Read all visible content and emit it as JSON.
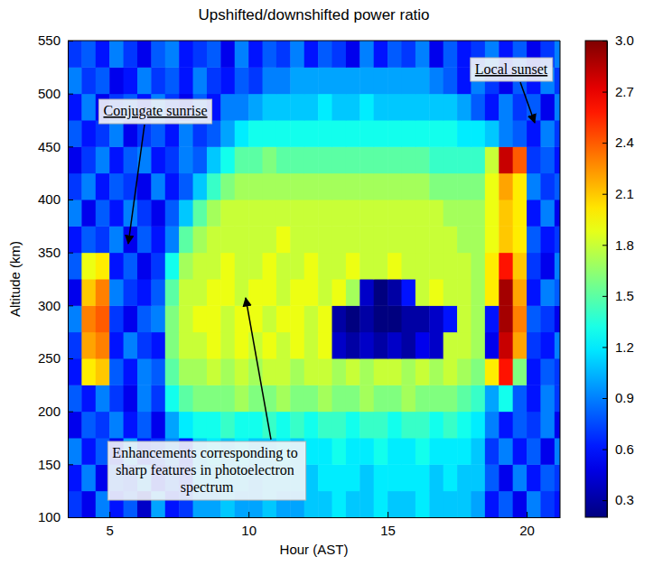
{
  "chart_data": {
    "type": "heatmap",
    "title": "Upshifted/downshifted power ratio",
    "x_label": "Hour (AST)",
    "y_label": "Altitude (km)",
    "xlim": [
      3.5,
      21.2
    ],
    "xticks": [
      5,
      10,
      15,
      20
    ],
    "ylim": [
      100,
      550
    ],
    "yticks": [
      100,
      150,
      200,
      250,
      300,
      350,
      400,
      450,
      500,
      550
    ],
    "grid": false,
    "color": "jet",
    "colorbar_range": [
      0.2,
      3.0
    ],
    "colorbar_ticks": [
      0.3,
      0.6,
      0.9,
      1.2,
      1.5,
      1.8,
      2.1,
      2.4,
      2.7,
      {
        "value": 3,
        "label": "3.0"
      }
    ],
    "annotations": [
      {
        "text": "Conjugate sunrise"
      },
      {
        "text": "Local sunset"
      },
      {
        "text": "Enhancements corresponding to sharp features in photoelectron spectrum"
      }
    ],
    "x": [
      3.75,
      4.25,
      4.75,
      5.25,
      5.75,
      6.25,
      6.75,
      7.25,
      7.75,
      8.25,
      8.75,
      9.25,
      9.75,
      10.25,
      10.75,
      11.25,
      11.75,
      12.25,
      12.75,
      13.25,
      13.75,
      14.25,
      14.75,
      15.25,
      15.75,
      16.25,
      16.75,
      17.25,
      17.75,
      18.25,
      18.75,
      19.25,
      19.75,
      20.25,
      20.75,
      21.25
    ],
    "y": [
      112.5,
      137.5,
      162.5,
      187.5,
      212.5,
      237.5,
      262.5,
      287.5,
      312.5,
      337.5,
      362.5,
      387.5,
      412.5,
      437.5,
      462.5,
      487.5,
      512.5,
      537.5
    ],
    "z": [
      [
        0.7,
        0.5,
        0.9,
        0.6,
        0.8,
        0.4,
        1.0,
        0.6,
        0.7,
        1.0,
        1.0,
        1.1,
        1.0,
        1.0,
        1.1,
        1.0,
        1.0,
        1.1,
        1.1,
        1.2,
        1.1,
        1.1,
        1.2,
        1.1,
        1.1,
        1.2,
        1.1,
        1.1,
        1.1,
        1.0,
        0.6,
        0.8,
        0.5,
        0.9,
        0.7,
        0.6
      ],
      [
        0.6,
        0.9,
        0.5,
        0.8,
        0.7,
        1.0,
        0.5,
        0.8,
        0.6,
        1.1,
        1.1,
        1.1,
        1.1,
        1.0,
        1.1,
        1.1,
        1.1,
        1.1,
        1.2,
        1.2,
        1.2,
        1.1,
        1.2,
        1.2,
        1.2,
        1.2,
        1.1,
        1.2,
        1.1,
        1.1,
        0.8,
        0.5,
        0.9,
        0.6,
        0.8,
        0.7
      ],
      [
        0.9,
        0.6,
        0.8,
        0.5,
        1.0,
        0.6,
        0.7,
        0.9,
        0.6,
        1.1,
        1.2,
        1.1,
        1.2,
        1.1,
        1.1,
        1.2,
        1.1,
        1.2,
        1.2,
        1.3,
        1.2,
        1.2,
        1.3,
        1.2,
        1.2,
        1.3,
        1.2,
        1.2,
        1.2,
        1.1,
        0.7,
        0.9,
        0.6,
        0.8,
        0.5,
        0.9
      ],
      [
        0.5,
        0.8,
        0.7,
        0.9,
        0.6,
        0.8,
        0.5,
        1.0,
        1.2,
        1.3,
        1.3,
        1.4,
        1.3,
        1.3,
        1.4,
        1.3,
        1.4,
        1.3,
        1.4,
        1.4,
        1.3,
        1.4,
        1.4,
        1.3,
        1.4,
        1.4,
        1.3,
        1.4,
        1.3,
        1.2,
        0.9,
        0.6,
        0.8,
        0.7,
        0.9,
        0.5
      ],
      [
        0.8,
        0.6,
        0.9,
        0.7,
        0.5,
        0.9,
        0.7,
        1.3,
        1.5,
        1.6,
        1.6,
        1.6,
        1.7,
        1.6,
        1.6,
        1.7,
        1.6,
        1.6,
        1.7,
        1.6,
        1.6,
        1.7,
        1.6,
        1.6,
        1.7,
        1.6,
        1.6,
        1.6,
        1.5,
        1.4,
        1.0,
        1.3,
        0.8,
        0.6,
        0.9,
        0.7
      ],
      [
        0.6,
        2.0,
        2.1,
        0.8,
        0.6,
        0.9,
        0.8,
        1.5,
        1.7,
        1.7,
        1.8,
        1.7,
        1.8,
        1.7,
        1.8,
        1.8,
        1.7,
        1.8,
        1.8,
        1.7,
        1.8,
        1.7,
        1.8,
        1.8,
        1.7,
        1.8,
        1.7,
        1.8,
        1.7,
        1.6,
        2.0,
        2.6,
        1.6,
        0.6,
        0.8,
        0.7
      ],
      [
        0.7,
        2.2,
        2.3,
        0.6,
        0.9,
        0.7,
        0.6,
        1.6,
        1.8,
        1.8,
        1.9,
        1.8,
        1.9,
        1.8,
        1.9,
        1.8,
        1.9,
        1.8,
        1.9,
        0.4,
        0.3,
        0.4,
        0.3,
        0.4,
        0.3,
        0.5,
        0.4,
        1.8,
        1.8,
        1.7,
        0.5,
        2.8,
        2.2,
        0.7,
        0.6,
        0.9
      ],
      [
        0.9,
        2.3,
        2.4,
        0.7,
        0.5,
        0.8,
        0.9,
        1.6,
        1.8,
        1.9,
        1.9,
        1.8,
        1.9,
        1.9,
        1.8,
        1.9,
        1.9,
        1.8,
        1.9,
        0.3,
        0.2,
        0.3,
        0.2,
        0.2,
        0.3,
        0.3,
        0.4,
        0.6,
        1.8,
        1.7,
        0.6,
        2.9,
        2.3,
        0.8,
        0.7,
        0.5
      ],
      [
        0.5,
        2.1,
        2.3,
        0.9,
        0.7,
        0.6,
        0.8,
        1.5,
        1.8,
        1.8,
        1.9,
        1.9,
        1.8,
        1.9,
        1.9,
        1.8,
        1.9,
        1.9,
        1.8,
        1.9,
        1.7,
        0.4,
        0.2,
        0.3,
        0.6,
        1.8,
        1.9,
        1.8,
        1.8,
        1.7,
        2.0,
        2.9,
        2.2,
        0.6,
        0.9,
        0.8
      ],
      [
        0.8,
        1.9,
        2.0,
        0.6,
        0.8,
        0.5,
        0.7,
        1.3,
        1.7,
        1.8,
        1.8,
        1.9,
        1.8,
        1.8,
        1.9,
        1.8,
        1.8,
        1.9,
        1.8,
        1.8,
        1.9,
        1.8,
        1.8,
        1.9,
        1.8,
        1.8,
        1.8,
        1.8,
        1.8,
        1.7,
        2.0,
        2.6,
        2.1,
        0.7,
        0.5,
        0.9
      ],
      [
        0.6,
        0.8,
        0.7,
        0.9,
        0.5,
        0.8,
        0.6,
        0.9,
        1.5,
        1.7,
        1.8,
        1.8,
        1.8,
        1.8,
        1.8,
        1.9,
        1.8,
        1.8,
        1.8,
        1.8,
        1.8,
        1.8,
        1.8,
        1.8,
        1.8,
        1.8,
        1.8,
        1.8,
        1.7,
        1.7,
        1.9,
        2.1,
        2.0,
        0.8,
        0.6,
        0.7
      ],
      [
        0.9,
        0.5,
        0.8,
        0.6,
        0.9,
        0.7,
        0.5,
        0.8,
        1.1,
        1.5,
        1.7,
        1.8,
        1.8,
        1.8,
        1.8,
        1.8,
        1.8,
        1.8,
        1.8,
        1.8,
        1.8,
        1.8,
        1.8,
        1.8,
        1.8,
        1.8,
        1.8,
        1.7,
        1.7,
        1.7,
        1.9,
        2.1,
        2.0,
        0.6,
        0.9,
        0.5
      ],
      [
        0.7,
        0.9,
        0.6,
        0.8,
        0.7,
        0.5,
        0.9,
        0.6,
        0.8,
        1.1,
        1.4,
        1.6,
        1.7,
        1.7,
        1.7,
        1.7,
        1.7,
        1.7,
        1.7,
        1.7,
        1.7,
        1.7,
        1.7,
        1.7,
        1.7,
        1.7,
        1.6,
        1.6,
        1.6,
        1.6,
        1.9,
        2.2,
        2.0,
        0.9,
        0.7,
        0.8
      ],
      [
        0.5,
        0.7,
        0.9,
        0.6,
        0.8,
        0.9,
        0.6,
        0.7,
        0.9,
        0.8,
        1.1,
        1.3,
        1.5,
        1.5,
        1.6,
        1.5,
        1.5,
        1.5,
        1.5,
        1.5,
        1.5,
        1.5,
        1.5,
        1.5,
        1.5,
        1.5,
        1.4,
        1.4,
        1.4,
        1.4,
        1.8,
        2.8,
        2.4,
        0.7,
        0.8,
        0.6
      ],
      [
        0.8,
        0.6,
        0.7,
        0.9,
        0.5,
        0.7,
        0.8,
        0.6,
        0.9,
        0.7,
        0.8,
        1.0,
        1.2,
        1.3,
        1.3,
        1.3,
        1.3,
        1.3,
        1.3,
        1.3,
        1.3,
        1.3,
        1.3,
        1.3,
        1.3,
        1.3,
        1.3,
        1.3,
        1.2,
        1.2,
        1.1,
        0.9,
        0.8,
        0.6,
        0.9,
        0.7
      ],
      [
        0.6,
        0.9,
        0.5,
        0.7,
        0.8,
        0.6,
        0.9,
        0.7,
        0.5,
        0.8,
        0.6,
        0.9,
        0.9,
        1.0,
        1.1,
        1.1,
        1.1,
        1.1,
        1.2,
        1.1,
        1.1,
        1.2,
        1.1,
        1.1,
        1.1,
        1.1,
        1.1,
        1.1,
        1.0,
        0.8,
        0.6,
        0.9,
        0.7,
        0.8,
        0.5,
        0.9
      ],
      [
        0.9,
        0.7,
        0.8,
        0.5,
        0.6,
        0.9,
        0.7,
        0.8,
        0.6,
        0.9,
        0.7,
        0.6,
        0.8,
        0.7,
        0.9,
        0.9,
        1.0,
        1.0,
        1.0,
        1.0,
        1.0,
        1.0,
        1.0,
        1.0,
        1.0,
        1.0,
        0.9,
        0.8,
        0.6,
        0.9,
        0.7,
        0.5,
        0.8,
        0.6,
        0.9,
        0.7
      ],
      [
        0.7,
        0.8,
        0.6,
        0.9,
        0.7,
        0.5,
        0.8,
        0.9,
        0.6,
        0.7,
        0.8,
        0.5,
        0.9,
        0.6,
        0.8,
        0.7,
        0.9,
        0.6,
        0.8,
        0.7,
        0.5,
        0.9,
        0.6,
        0.8,
        0.7,
        0.9,
        0.5,
        0.8,
        0.6,
        0.7,
        0.9,
        0.6,
        0.8,
        0.5,
        0.7,
        0.9
      ]
    ]
  }
}
